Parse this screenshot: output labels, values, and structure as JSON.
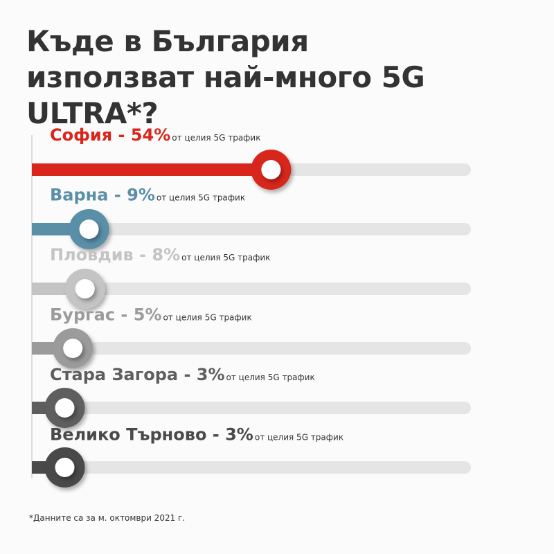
{
  "chart_data": {
    "type": "bar",
    "title": "Къде в България използват най-много 5G ULTRA*?",
    "value_labels": [
      "София - 54%",
      "Варна - 9%",
      "Пловдив - 8%",
      "Бургас - 5%",
      "Стара Загора - 3%",
      "Велико Търново - 3%"
    ],
    "values": [
      54,
      9,
      8,
      5,
      3,
      3
    ],
    "colors": [
      "#d9261c",
      "#5a8fa8",
      "#c4c4c4",
      "#9b9b9b",
      "#5e5e5e",
      "#4a4a4a"
    ],
    "label_note": "от целия 5G трафик",
    "xlim": [
      0,
      100
    ],
    "footnote": "*Данните са за м. октомври 2021 г."
  }
}
